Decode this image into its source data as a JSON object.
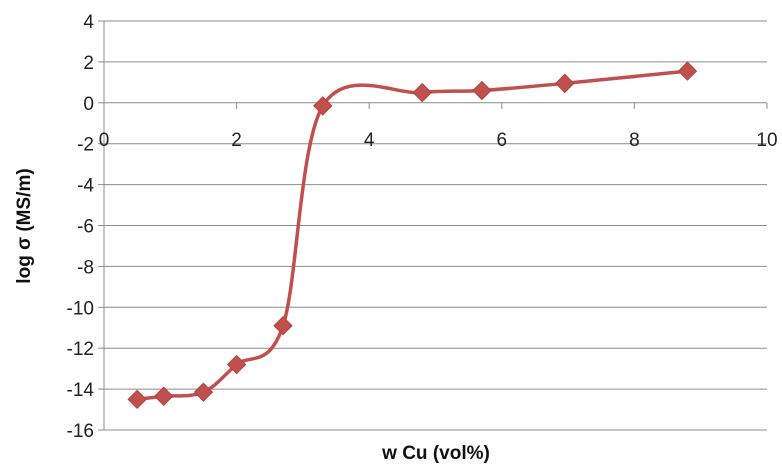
{
  "chart_data": {
    "type": "line",
    "title": "",
    "xlabel": "w Cu (vol%)",
    "ylabel": "log σ (MS/m)",
    "xlim": [
      0,
      10
    ],
    "ylim": [
      -16,
      4
    ],
    "x_ticks": [
      0,
      2,
      4,
      6,
      8,
      10
    ],
    "y_ticks": [
      4,
      2,
      0,
      -2,
      -4,
      -6,
      -8,
      -10,
      -12,
      -14,
      -16
    ],
    "grid": "horizontal",
    "legend": "none",
    "smooth": true,
    "marker": "diamond",
    "series_color": "#c0504d",
    "series": [
      {
        "x": [
          0.5,
          0.9,
          1.5,
          2.0,
          2.7,
          3.3,
          4.8,
          5.7,
          6.95,
          8.8
        ],
        "y": [
          -14.5,
          -14.35,
          -14.15,
          -12.8,
          -10.9,
          -0.15,
          0.5,
          0.6,
          0.95,
          1.55
        ]
      }
    ]
  }
}
